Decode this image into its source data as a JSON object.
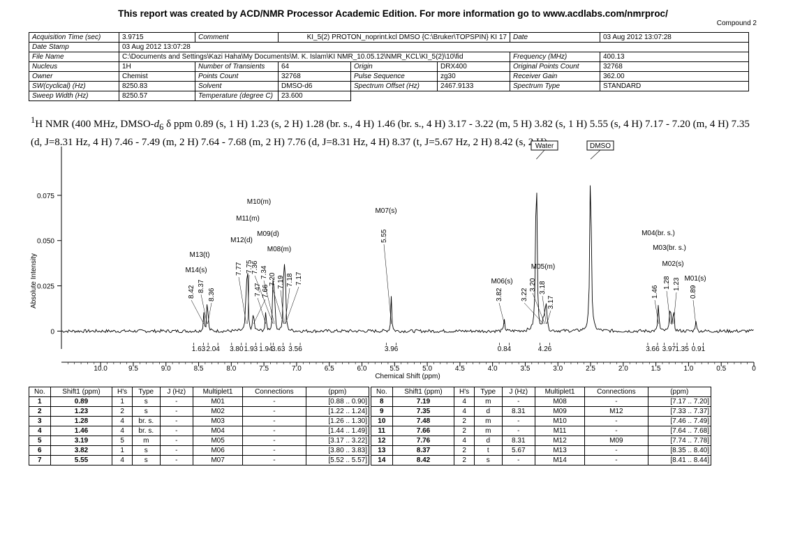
{
  "header": {
    "title": "This report was created by ACD/NMR Processor Academic Edition. For more information go to www.acdlabs.com/nmrproc/",
    "compound": "Compound 2"
  },
  "params": [
    [
      "Acquisition Time (sec)",
      "3.9715",
      "Comment",
      "KI_5(2) PROTON_noprint.kcl DMSO {C:\\Bruker\\TOPSPIN} KI 17",
      "Date",
      "03 Aug 2012 13:07:28"
    ],
    [
      "Date Stamp",
      "03 Aug 2012 13:07:28"
    ],
    [
      "File Name",
      "C:\\Documents and Settings\\Kazi Haha\\My Documents\\M. K. Islam\\KI NMR_10.05.12\\NMR_KCL\\KI_5(2)\\10\\fid",
      "Frequency (MHz)",
      "400.13"
    ],
    [
      "Nucleus",
      "1H",
      "Number of Transients",
      "64",
      "Origin",
      "DRX400",
      "Original Points Count",
      "32768"
    ],
    [
      "Owner",
      "Chemist",
      "Points Count",
      "32768",
      "Pulse Sequence",
      "zg30",
      "Receiver Gain",
      "362.00"
    ],
    [
      "SW(cyclical) (Hz)",
      "8250.83",
      "Solvent",
      "DMSO-d6",
      "Spectrum Offset (Hz)",
      "2467.9133",
      "Spectrum Type",
      "STANDARD"
    ],
    [
      "Sweep Width (Hz)",
      "8250.57",
      "Temperature (degree C)",
      "23.600"
    ]
  ],
  "nmr_summary": {
    "sup": "1",
    "lead": "H NMR (400 MHz, DMSO-",
    "solvent_d": "d",
    "sub": "6",
    "rest": " δ ppm 0.89 (s, 1 H) 1.23 (s, 2 H) 1.28 (br. s., 4 H) 1.46 (br. s., 4 H) 3.17 - 3.22 (m, 5 H) 3.82 (s, 1 H) 5.55 (s, 4 H) 7.17 - 7.20 (m, 4 H) 7.35 (d, J=8.31 Hz, 4 H) 7.46 - 7.49 (m, 2 H) 7.64 - 7.68 (m, 2 H) 7.76 (d, J=8.31 Hz, 4 H) 8.37 (t, J=5.67 Hz, 2 H) 8.42 (s, 2 H)"
  },
  "chart_data": {
    "type": "line",
    "title": "",
    "xlabel": "Chemical Shift (ppm)",
    "ylabel": "Absolute Intensity",
    "xlim": [
      10.6,
      0
    ],
    "ylim": [
      -0.006,
      0.1
    ],
    "x_reversed": true,
    "x_ticks": [
      "10.0",
      "9.5",
      "9.0",
      "8.5",
      "8.0",
      "7.5",
      "7.0",
      "6.5",
      "6.0",
      "5.5",
      "5.0",
      "4.5",
      "4.0",
      "3.5",
      "3.0",
      "2.5",
      "2.0",
      "1.5",
      "1.0",
      "0.5",
      "0"
    ],
    "y_ticks": [
      "0",
      "0.025",
      "0.050",
      "0.075"
    ],
    "peaks": [
      {
        "x": 8.42,
        "y": 0.01
      },
      {
        "x": 8.37,
        "y": 0.012
      },
      {
        "x": 8.36,
        "y": 0.009
      },
      {
        "x": 7.77,
        "y": 0.033
      },
      {
        "x": 7.75,
        "y": 0.032
      },
      {
        "x": 7.66,
        "y": 0.014
      },
      {
        "x": 7.47,
        "y": 0.012
      },
      {
        "x": 7.36,
        "y": 0.027
      },
      {
        "x": 7.34,
        "y": 0.029
      },
      {
        "x": 7.2,
        "y": 0.021
      },
      {
        "x": 7.19,
        "y": 0.02
      },
      {
        "x": 7.18,
        "y": 0.018
      },
      {
        "x": 7.17,
        "y": 0.017
      },
      {
        "x": 5.55,
        "y": 0.02
      },
      {
        "x": 3.82,
        "y": 0.007
      },
      {
        "x": 3.33,
        "y": 0.1
      },
      {
        "x": 3.22,
        "y": 0.008
      },
      {
        "x": 3.2,
        "y": 0.012
      },
      {
        "x": 3.18,
        "y": 0.01
      },
      {
        "x": 3.17,
        "y": 0.008
      },
      {
        "x": 2.5,
        "y": 0.1
      },
      {
        "x": 1.46,
        "y": 0.018
      },
      {
        "x": 1.28,
        "y": 0.022
      },
      {
        "x": 1.23,
        "y": 0.015
      },
      {
        "x": 0.89,
        "y": 0.007
      }
    ],
    "peak_labels": [
      {
        "ppm": "8.42",
        "x": 8.42
      },
      {
        "ppm": "8.37",
        "x": 8.37
      },
      {
        "ppm": "8.36",
        "x": 8.36
      },
      {
        "ppm": "7.77",
        "x": 7.77
      },
      {
        "ppm": "7.75",
        "x": 7.75
      },
      {
        "ppm": "7.66",
        "x": 7.66
      },
      {
        "ppm": "7.47",
        "x": 7.47
      },
      {
        "ppm": "7.36",
        "x": 7.36
      },
      {
        "ppm": "7.34",
        "x": 7.34
      },
      {
        "ppm": "7.20",
        "x": 7.2
      },
      {
        "ppm": "7.19",
        "x": 7.19
      },
      {
        "ppm": "7.18",
        "x": 7.18
      },
      {
        "ppm": "7.17",
        "x": 7.17
      },
      {
        "ppm": "5.55",
        "x": 5.55
      },
      {
        "ppm": "3.82",
        "x": 3.82
      },
      {
        "ppm": "3.22",
        "x": 3.22
      },
      {
        "ppm": "3.20",
        "x": 3.2
      },
      {
        "ppm": "3.18",
        "x": 3.18
      },
      {
        "ppm": "3.17",
        "x": 3.17
      },
      {
        "ppm": "1.46",
        "x": 1.46
      },
      {
        "ppm": "1.28",
        "x": 1.28
      },
      {
        "ppm": "1.23",
        "x": 1.23
      },
      {
        "ppm": "0.89",
        "x": 0.89
      }
    ],
    "multiplet_labels": [
      "M14(s)",
      "M13(t)",
      "M12(d)",
      "M11(m)",
      "M10(m)",
      "M09(d)",
      "M08(m)",
      "M07(s)",
      "M06(s)",
      "M05(m)",
      "M04(br. s.)",
      "M03(br. s.)",
      "M02(s)",
      "M01(s)"
    ],
    "solvent_labels": [
      "Water",
      "DMSO"
    ],
    "integrals": [
      {
        "value": "1.63",
        "x": 8.5
      },
      {
        "value": "2.04",
        "x": 8.28
      },
      {
        "value": "3.80",
        "x": 7.92
      },
      {
        "value": "1.93",
        "x": 7.7
      },
      {
        "value": "1.94",
        "x": 7.47
      },
      {
        "value": "3.63",
        "x": 7.28
      },
      {
        "value": "3.56",
        "x": 7.02
      },
      {
        "value": "3.96",
        "x": 5.55
      },
      {
        "value": "0.84",
        "x": 3.82
      },
      {
        "value": "4.26",
        "x": 3.2
      },
      {
        "value": "3.66",
        "x": 1.55
      },
      {
        "value": "3.97",
        "x": 1.3
      },
      {
        "value": "1.35",
        "x": 1.1
      },
      {
        "value": "0.91",
        "x": 0.85
      }
    ]
  },
  "peak_table": {
    "headers": [
      "No.",
      "Shift1 (ppm)",
      "H's",
      "Type",
      "J (Hz)",
      "Multiplet1",
      "Connections",
      "(ppm)"
    ],
    "left": [
      [
        "1",
        "0.89",
        "1",
        "s",
        "-",
        "M01",
        "-",
        "[0.88 .. 0.90]"
      ],
      [
        "2",
        "1.23",
        "2",
        "s",
        "-",
        "M02",
        "-",
        "[1.22 .. 1.24]"
      ],
      [
        "3",
        "1.28",
        "4",
        "br. s.",
        "-",
        "M03",
        "-",
        "[1.26 .. 1.30]"
      ],
      [
        "4",
        "1.46",
        "4",
        "br. s.",
        "-",
        "M04",
        "-",
        "[1.44 .. 1.49]"
      ],
      [
        "5",
        "3.19",
        "5",
        "m",
        "-",
        "M05",
        "-",
        "[3.17 .. 3.22]"
      ],
      [
        "6",
        "3.82",
        "1",
        "s",
        "-",
        "M06",
        "-",
        "[3.80 .. 3.83]"
      ],
      [
        "7",
        "5.55",
        "4",
        "s",
        "-",
        "M07",
        "-",
        "[5.52 .. 5.57]"
      ]
    ],
    "right": [
      [
        "8",
        "7.19",
        "4",
        "m",
        "-",
        "M08",
        "-",
        "[7.17 .. 7.20]"
      ],
      [
        "9",
        "7.35",
        "4",
        "d",
        "8.31",
        "M09",
        "M12",
        "[7.33 .. 7.37]"
      ],
      [
        "10",
        "7.48",
        "2",
        "m",
        "-",
        "M10",
        "-",
        "[7.46 .. 7.49]"
      ],
      [
        "11",
        "7.66",
        "2",
        "m",
        "-",
        "M11",
        "-",
        "[7.64 .. 7.68]"
      ],
      [
        "12",
        "7.76",
        "4",
        "d",
        "8.31",
        "M12",
        "M09",
        "[7.74 .. 7.78]"
      ],
      [
        "13",
        "8.37",
        "2",
        "t",
        "5.67",
        "M13",
        "-",
        "[8.35 .. 8.40]"
      ],
      [
        "14",
        "8.42",
        "2",
        "s",
        "-",
        "M14",
        "-",
        "[8.41 .. 8.44]"
      ]
    ]
  }
}
